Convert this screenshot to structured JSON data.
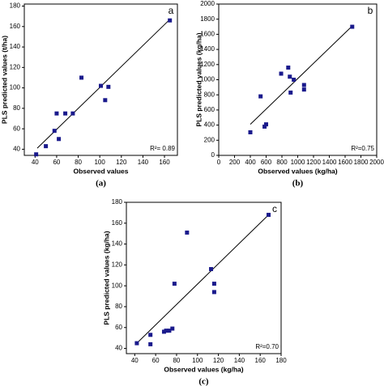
{
  "chart_data": [
    {
      "type": "scatter",
      "panel": "a",
      "caption": "(a)",
      "annotation": "R²= 0.89",
      "xlabel": "Observed values",
      "ylabel": "PLS predicted values (t/ha)",
      "x": [
        41,
        50,
        58,
        60,
        62,
        68,
        75,
        83,
        101,
        105,
        108,
        165
      ],
      "y": [
        35,
        43,
        58,
        75,
        50,
        75,
        75,
        110,
        102,
        88,
        101,
        166
      ],
      "trendline": {
        "x": [
          42,
          165
        ],
        "y": [
          41,
          167
        ]
      },
      "color": "#1a1a8c",
      "xlim": [
        30,
        172
      ],
      "xticks": [
        40,
        60,
        80,
        100,
        120,
        140,
        160
      ],
      "ylim": [
        34,
        182
      ],
      "yticks": [
        40,
        60,
        80,
        100,
        120,
        140,
        160,
        180
      ]
    },
    {
      "type": "scatter",
      "panel": "b",
      "caption": "(b)",
      "annotation": "R²=0.75",
      "xlabel": "Observed values (kg/ha)",
      "ylabel": "PLS predicted values (kg/ha)",
      "x": [
        400,
        530,
        580,
        600,
        790,
        880,
        900,
        910,
        950,
        1080,
        1080,
        1690
      ],
      "y": [
        305,
        780,
        380,
        410,
        1080,
        1160,
        1040,
        830,
        1000,
        930,
        870,
        1700
      ],
      "trendline": {
        "x": [
          400,
          1690
        ],
        "y": [
          410,
          1710
        ]
      },
      "color": "#1a1a8c",
      "xlim": [
        0,
        2000
      ],
      "xticks": [
        0,
        200,
        400,
        600,
        800,
        1000,
        1200,
        1400,
        1600,
        1800,
        2000
      ],
      "ylim": [
        0,
        2000
      ],
      "yticks": [
        0,
        200,
        400,
        600,
        800,
        1000,
        1200,
        1400,
        1600,
        1800,
        2000
      ]
    },
    {
      "type": "scatter",
      "panel": "c",
      "caption": "(c)",
      "annotation": "R²=0.70",
      "xlabel": "Observed values (kg/ha)",
      "ylabel": "PLS predicted values (kg/ha)",
      "x": [
        42,
        55,
        55,
        68,
        70,
        73,
        76,
        78,
        90,
        113,
        116,
        116,
        168
      ],
      "y": [
        45,
        44,
        53,
        56,
        57,
        57,
        59,
        102,
        151,
        116,
        102,
        94,
        168
      ],
      "trendline": {
        "x": [
          42,
          168
        ],
        "y": [
          45,
          168
        ]
      },
      "color": "#1a1a8c",
      "xlim": [
        32,
        180
      ],
      "xticks": [
        40,
        60,
        80,
        100,
        120,
        140,
        160,
        180
      ],
      "ylim": [
        35,
        180
      ],
      "yticks": [
        40,
        60,
        80,
        100,
        120,
        140,
        160,
        180
      ]
    }
  ]
}
